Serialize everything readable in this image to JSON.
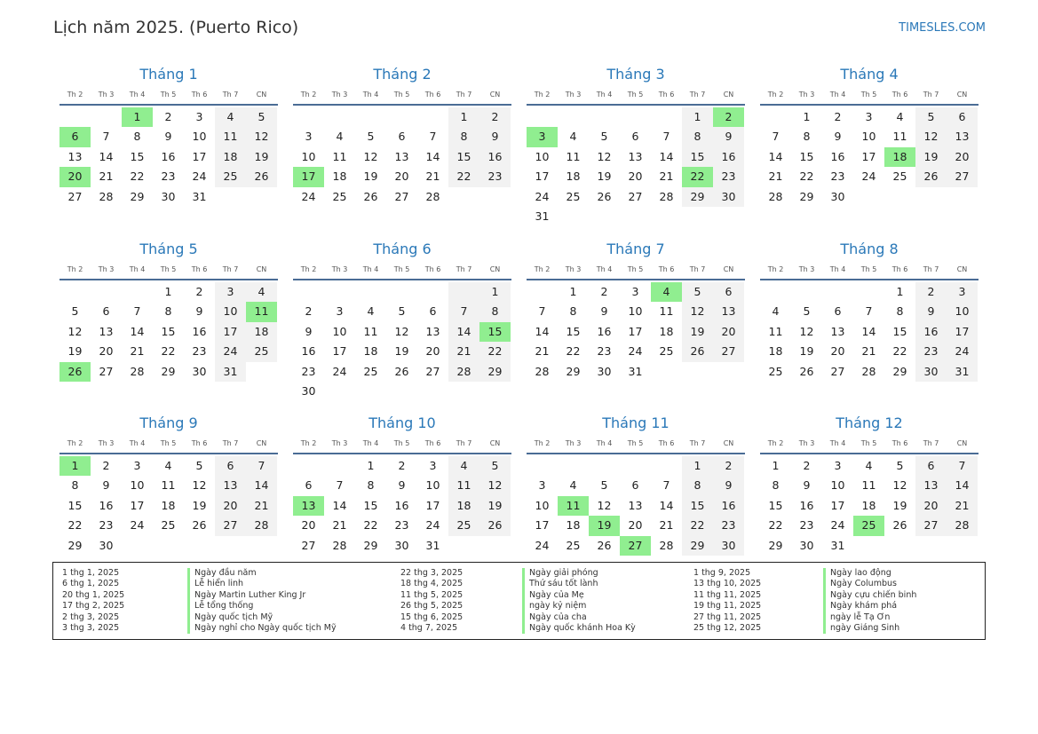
{
  "header": {
    "title": "Lịch năm 2025. (Puerto Rico)",
    "site": "TIMESLES.COM"
  },
  "weekdays": [
    "Th 2",
    "Th 3",
    "Th 4",
    "Th 5",
    "Th 6",
    "Th 7",
    "CN"
  ],
  "colors": {
    "weekend_bg": "#f2f2f2",
    "holiday_bg": "#90ee90",
    "title_blue": "#2a78b8",
    "rule": "#4a6c95"
  },
  "months": [
    {
      "name": "Tháng 1",
      "start": 2,
      "days": 31,
      "holidays": [
        1,
        6,
        20
      ]
    },
    {
      "name": "Tháng 2",
      "start": 5,
      "days": 28,
      "holidays": [
        17
      ]
    },
    {
      "name": "Tháng 3",
      "start": 5,
      "days": 31,
      "holidays": [
        2,
        3,
        22
      ]
    },
    {
      "name": "Tháng 4",
      "start": 1,
      "days": 30,
      "holidays": [
        18
      ]
    },
    {
      "name": "Tháng 5",
      "start": 3,
      "days": 31,
      "holidays": [
        11,
        26
      ]
    },
    {
      "name": "Tháng 6",
      "start": 6,
      "days": 30,
      "holidays": [
        15
      ]
    },
    {
      "name": "Tháng 7",
      "start": 1,
      "days": 31,
      "holidays": [
        4
      ]
    },
    {
      "name": "Tháng 8",
      "start": 4,
      "days": 31,
      "holidays": []
    },
    {
      "name": "Tháng 9",
      "start": 0,
      "days": 30,
      "holidays": [
        1
      ]
    },
    {
      "name": "Tháng 10",
      "start": 2,
      "days": 31,
      "holidays": [
        13
      ]
    },
    {
      "name": "Tháng 11",
      "start": 5,
      "days": 30,
      "holidays": [
        11,
        19,
        27
      ]
    },
    {
      "name": "Tháng 12",
      "start": 0,
      "days": 31,
      "holidays": [
        25
      ]
    }
  ],
  "holiday_list": [
    {
      "date": "1 thg 1, 2025",
      "name": "Ngày đầu năm"
    },
    {
      "date": "6 thg 1, 2025",
      "name": "Lễ hiển linh"
    },
    {
      "date": "20 thg 1, 2025",
      "name": "Ngày Martin Luther King Jr"
    },
    {
      "date": "17 thg 2, 2025",
      "name": "Lễ tổng thống"
    },
    {
      "date": "2 thg 3, 2025",
      "name": "Ngày quốc tịch Mỹ"
    },
    {
      "date": "3 thg 3, 2025",
      "name": "Ngày nghỉ cho Ngày quốc tịch Mỹ"
    },
    {
      "date": "22 thg 3, 2025",
      "name": "Ngày giải phóng"
    },
    {
      "date": "18 thg 4, 2025",
      "name": "Thứ sáu tốt lành"
    },
    {
      "date": "11 thg 5, 2025",
      "name": "Ngày của Mẹ"
    },
    {
      "date": "26 thg 5, 2025",
      "name": "ngày kỷ niệm"
    },
    {
      "date": "15 thg 6, 2025",
      "name": "Ngày của cha"
    },
    {
      "date": "4 thg 7, 2025",
      "name": "Ngày quốc khánh Hoa Kỳ"
    },
    {
      "date": "1 thg 9, 2025",
      "name": "Ngày lao động"
    },
    {
      "date": "13 thg 10, 2025",
      "name": "Ngày Columbus"
    },
    {
      "date": "11 thg 11, 2025",
      "name": "Ngày cựu chiến binh"
    },
    {
      "date": "19 thg 11, 2025",
      "name": "Ngày khám phá"
    },
    {
      "date": "27 thg 11, 2025",
      "name": "ngày lễ Tạ Ơn"
    },
    {
      "date": "25 thg 12, 2025",
      "name": "ngày Giáng Sinh"
    }
  ]
}
